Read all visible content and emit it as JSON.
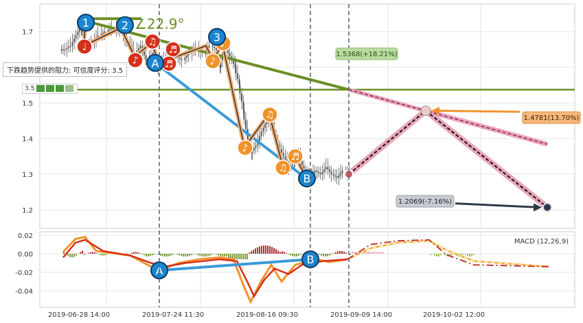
{
  "chart_data": [
    {
      "type": "candlestick",
      "ylim": [
        1.17,
        1.78
      ],
      "yticks": [
        "1.7",
        "1.6",
        "1.5",
        "1.4",
        "1.3",
        "1.2"
      ],
      "xticks": [
        "2019-06-28 14:00",
        "2019-07-24 11:30",
        "2019-08-16 09:30",
        "2019-09-09 14:00",
        "2019-10-02 12:00"
      ],
      "angle_label": "∠22.9°",
      "resistance_label": "下跌趋势提供的阻力: 可信度评分: 3.5",
      "rating_value": "3.5",
      "wave_points": [
        "1",
        "2",
        "3",
        "A",
        "B"
      ],
      "targets": [
        {
          "label": "1.5368(+18.21%)",
          "value": 1.5368
        },
        {
          "label": "1.4781(13.70%)",
          "value": 1.4781
        },
        {
          "label": "1.2069(-7.16%)",
          "value": 1.2069
        }
      ],
      "horizontal_level": 1.537,
      "last_price": 1.3
    },
    {
      "type": "macd",
      "title": "MACD (12,26,9)",
      "ylim": [
        -0.055,
        0.023
      ],
      "yticks": [
        "0.02",
        "0.00",
        "-0.02",
        "-0.04"
      ],
      "divergence_points": [
        "A",
        "B"
      ]
    }
  ],
  "colors": {
    "olive": "#6b8e23",
    "blue_line": "#3a9ad9",
    "orange": "#f0932b",
    "red": "#d6301a",
    "pink": "#e9a6b8",
    "navy": "#2e3a48"
  }
}
